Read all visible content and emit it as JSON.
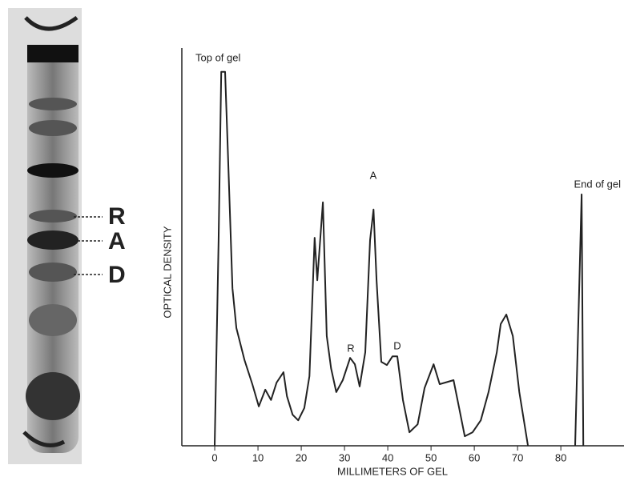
{
  "gel": {
    "labels": [
      "R",
      "A",
      "D"
    ]
  },
  "chart_data": {
    "type": "line",
    "xlabel": "MILLIMETERS OF GEL",
    "ylabel": "OPTICAL DENSITY",
    "annotations": [
      "Top of gel",
      "A",
      "R",
      "D",
      "End of gel"
    ],
    "color": "#222",
    "x": [
      0,
      0.9,
      1.5,
      2.4,
      3.1,
      4.1,
      5,
      6.9,
      8.7,
      10.2,
      11.7,
      13,
      14.3,
      15.9,
      16.7,
      18,
      19.3,
      20.7,
      21.9,
      23.1,
      23.7,
      25,
      25.9,
      26.9,
      28.1,
      29.6,
      31.3,
      32.4,
      33.5,
      34.8,
      35.9,
      36.7,
      37.4,
      38.5,
      39.8,
      41.1,
      42.2,
      43.5,
      45,
      46.9,
      48.5,
      50.6,
      52,
      53.3,
      55.2,
      56.5,
      57.8,
      59.6,
      61.5,
      63.3,
      65.2,
      66.1,
      67.4,
      68.9,
      70.4,
      71.9,
      72.4,
      78,
      83.3,
      84.8,
      85.2
    ],
    "values": [
      0,
      51.7,
      94,
      94,
      72,
      39.6,
      29.6,
      21.5,
      15.5,
      9.9,
      14.1,
      11.5,
      15.9,
      18.5,
      12.5,
      7.8,
      6.4,
      9.5,
      17.5,
      52.3,
      41.6,
      61.2,
      27.6,
      19.5,
      13.5,
      16.5,
      22.1,
      20.5,
      14.9,
      23.5,
      51.7,
      59.4,
      41.6,
      21.1,
      20.3,
      22.5,
      22.5,
      11.5,
      3.4,
      5.4,
      14.5,
      20.5,
      15.5,
      15.9,
      16.5,
      9.5,
      2.4,
      3.4,
      6.4,
      13.5,
      23.5,
      30.6,
      33,
      27.6,
      13.5,
      3.4,
      0,
      null,
      0,
      63.2,
      0
    ],
    "xlim": [
      -7.6,
      94.6
    ],
    "ylim": [
      0,
      100
    ],
    "xticks": [
      0,
      10,
      20,
      30,
      40,
      50,
      60,
      70,
      80
    ]
  }
}
